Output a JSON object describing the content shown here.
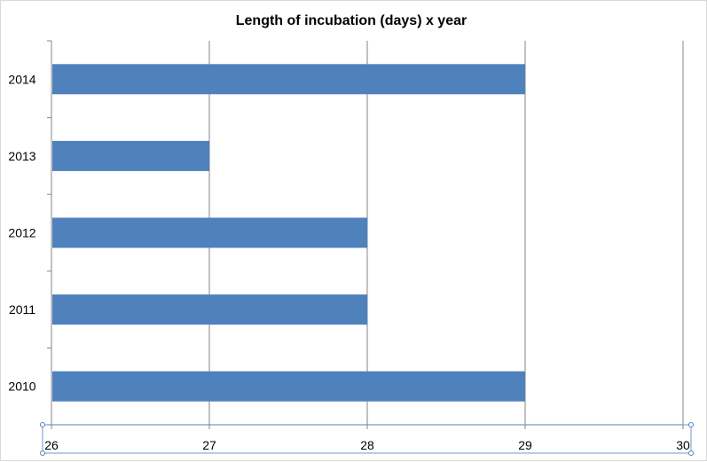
{
  "chart_data": {
    "type": "bar",
    "orientation": "horizontal",
    "title": "Length of incubation (days) x year",
    "categories": [
      "2014",
      "2013",
      "2012",
      "2011",
      "2010"
    ],
    "values": [
      29,
      27,
      28,
      28,
      29
    ],
    "x_ticks": [
      "26",
      "27",
      "28",
      "29",
      "30"
    ],
    "xlim": [
      26,
      30
    ],
    "xlabel": "",
    "ylabel": "",
    "grid": "vertical major gridlines",
    "legend": "none",
    "bar_color": "#4f81bd",
    "gridline_color": "#868686",
    "selection_handle_color": "#4f81bd"
  }
}
